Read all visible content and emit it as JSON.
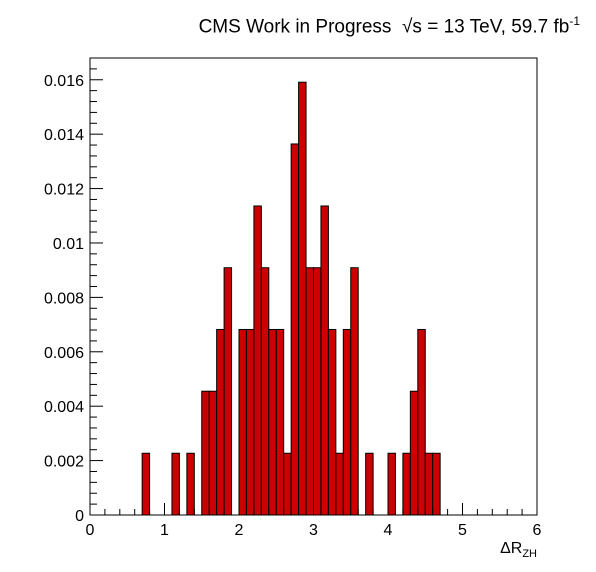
{
  "title": {
    "prefix": "CMS Work in Progress",
    "sqrt": "√s",
    "rest": " = 13 TeV, 59.7 fb",
    "sup": "-1"
  },
  "chart_data": {
    "type": "bar",
    "histogram": true,
    "fill_color": "#cc0000",
    "edge_color": "#000000",
    "xlabel": "ΔR",
    "xlabel_sub": "ZH",
    "ylabel": "",
    "xlim": [
      0,
      6
    ],
    "ylim": [
      0,
      0.0168
    ],
    "bin_width": 0.1,
    "x_ticks": [
      0,
      1,
      2,
      3,
      4,
      5,
      6
    ],
    "y_ticks": [
      0,
      0.002,
      0.004,
      0.006,
      0.008,
      0.01,
      0.012,
      0.014,
      0.016
    ],
    "y_tick_labels": [
      "0",
      "0.002",
      "0.004",
      "0.006",
      "0.008",
      "0.01",
      "0.012",
      "0.014",
      "0.016"
    ],
    "bins": [
      {
        "x": 0.7,
        "y": 0.00227
      },
      {
        "x": 1.1,
        "y": 0.00227
      },
      {
        "x": 1.3,
        "y": 0.00227
      },
      {
        "x": 1.5,
        "y": 0.00455
      },
      {
        "x": 1.6,
        "y": 0.00455
      },
      {
        "x": 1.7,
        "y": 0.00682
      },
      {
        "x": 1.8,
        "y": 0.00909
      },
      {
        "x": 2.0,
        "y": 0.00682
      },
      {
        "x": 2.1,
        "y": 0.00682
      },
      {
        "x": 2.2,
        "y": 0.01136
      },
      {
        "x": 2.3,
        "y": 0.00909
      },
      {
        "x": 2.4,
        "y": 0.00682
      },
      {
        "x": 2.5,
        "y": 0.00682
      },
      {
        "x": 2.6,
        "y": 0.00227
      },
      {
        "x": 2.7,
        "y": 0.01364
      },
      {
        "x": 2.8,
        "y": 0.01591
      },
      {
        "x": 2.9,
        "y": 0.00909
      },
      {
        "x": 3.0,
        "y": 0.00909
      },
      {
        "x": 3.1,
        "y": 0.01136
      },
      {
        "x": 3.2,
        "y": 0.00682
      },
      {
        "x": 3.3,
        "y": 0.00227
      },
      {
        "x": 3.4,
        "y": 0.00682
      },
      {
        "x": 3.5,
        "y": 0.00909
      },
      {
        "x": 3.7,
        "y": 0.00227
      },
      {
        "x": 4.0,
        "y": 0.00227
      },
      {
        "x": 4.2,
        "y": 0.00227
      },
      {
        "x": 4.3,
        "y": 0.00455
      },
      {
        "x": 4.4,
        "y": 0.00682
      },
      {
        "x": 4.5,
        "y": 0.00227
      },
      {
        "x": 4.6,
        "y": 0.00227
      }
    ]
  }
}
